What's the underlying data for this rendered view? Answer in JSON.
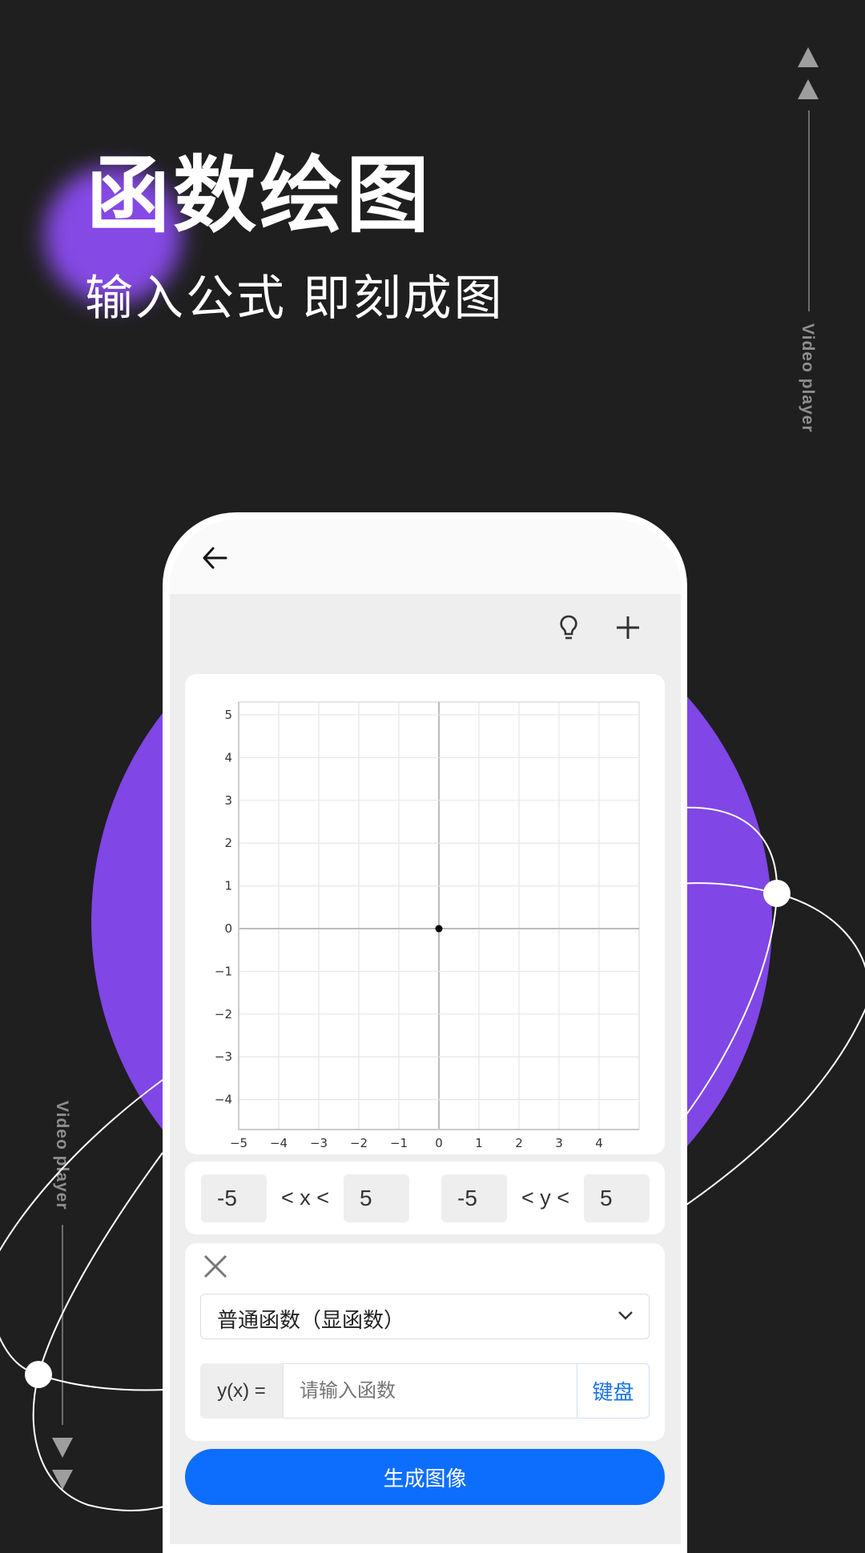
{
  "hero": {
    "title": "函数绘图",
    "subtitle": "输入公式 即刻成图"
  },
  "decor": {
    "right_label": "Video player",
    "left_label": "Video player",
    "accent": "#8046e6"
  },
  "app": {
    "back_icon": "arrow-left-icon",
    "toolbar_icons": [
      "lightbulb-icon",
      "plus-icon"
    ],
    "range": {
      "x_min": "-5",
      "x_label": "< x <",
      "x_max": "5",
      "y_min": "-5",
      "y_label": "< y <",
      "y_max": "5"
    },
    "function": {
      "type_selected": "普通函数（显函数）",
      "input_label": "y(x) =",
      "input_value": "",
      "input_placeholder": "请输入函数",
      "keyboard_label": "键盘"
    },
    "generate_label": "生成图像",
    "primary_color": "#0d6efd"
  },
  "chart_data": {
    "type": "scatter",
    "xlim": [
      -5,
      5
    ],
    "ylim": [
      -4.7,
      5.3
    ],
    "x_ticks": [
      "−5",
      "−4",
      "−3",
      "−2",
      "−1",
      "0",
      "1",
      "2",
      "3",
      "4"
    ],
    "y_ticks": [
      "5",
      "4",
      "3",
      "2",
      "1",
      "0",
      "−1",
      "−2",
      "−3",
      "−4"
    ],
    "grid": true,
    "points": [
      {
        "x": 0,
        "y": 0
      }
    ]
  }
}
